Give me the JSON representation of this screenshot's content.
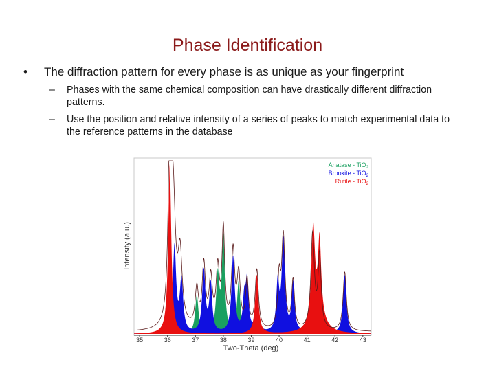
{
  "title": "Phase Identification",
  "bullet_main": {
    "marker": "•",
    "text": "The diffraction pattern for every phase is as unique as your fingerprint"
  },
  "sub_bullets": [
    {
      "marker": "–",
      "text": "Phases with the same chemical composition can have drastically different diffraction patterns."
    },
    {
      "marker": "–",
      "text": "Use the position and relative intensity of a series of peaks to match experimental data to the reference patterns in the database"
    }
  ],
  "chart_data": {
    "type": "area",
    "xlabel": "Two-Theta (deg)",
    "ylabel": "Intensity (a.u.)",
    "xlim": [
      34.8,
      43.3
    ],
    "ylim": [
      0,
      100
    ],
    "x_ticks": [
      "35",
      "36",
      "37",
      "38",
      "39",
      "40",
      "41",
      "42",
      "43"
    ],
    "grid": false,
    "legend_position": "top-right",
    "series": [
      {
        "name": "Anatase - TiO",
        "subscript": "2",
        "color": "#1aa060",
        "peaks": [
          [
            37.05,
            22,
            0.07
          ],
          [
            37.8,
            33,
            0.07
          ],
          [
            38.0,
            55,
            0.06
          ],
          [
            38.55,
            30,
            0.07
          ]
        ]
      },
      {
        "name": "Brookite - TiO",
        "subscript": "2",
        "color": "#1010e0",
        "peaks": [
          [
            36.25,
            50,
            0.07
          ],
          [
            36.5,
            30,
            0.07
          ],
          [
            37.3,
            36,
            0.07
          ],
          [
            37.55,
            28,
            0.06
          ],
          [
            38.35,
            44,
            0.07
          ],
          [
            38.75,
            18,
            0.06
          ],
          [
            38.85,
            28,
            0.06
          ],
          [
            39.2,
            22,
            0.06
          ],
          [
            39.95,
            28,
            0.06
          ],
          [
            40.15,
            53,
            0.07
          ],
          [
            40.5,
            28,
            0.06
          ],
          [
            41.2,
            44,
            0.07
          ],
          [
            42.35,
            34,
            0.07
          ]
        ]
      },
      {
        "name": "Rutile - TiO",
        "subscript": "2",
        "color": "#e81010",
        "peaks": [
          [
            36.08,
            98,
            0.065
          ],
          [
            39.2,
            34,
            0.07
          ],
          [
            41.22,
            54,
            0.075
          ],
          [
            41.45,
            42,
            0.065
          ],
          [
            41.4,
            12,
            0.25
          ]
        ]
      }
    ],
    "measured_peaks": [
      [
        36.08,
        100,
        0.065
      ],
      [
        36.2,
        70,
        0.1
      ],
      [
        36.45,
        40,
        0.09
      ],
      [
        37.05,
        22,
        0.07
      ],
      [
        37.3,
        36,
        0.07
      ],
      [
        37.55,
        28,
        0.07
      ],
      [
        37.8,
        33,
        0.07
      ],
      [
        38.0,
        56,
        0.06
      ],
      [
        38.35,
        44,
        0.07
      ],
      [
        38.55,
        30,
        0.07
      ],
      [
        38.85,
        28,
        0.06
      ],
      [
        39.2,
        34,
        0.07
      ],
      [
        40.0,
        28,
        0.06
      ],
      [
        40.15,
        53,
        0.07
      ],
      [
        40.5,
        28,
        0.06
      ],
      [
        41.2,
        55,
        0.075
      ],
      [
        41.45,
        42,
        0.065
      ],
      [
        42.35,
        34,
        0.07
      ]
    ]
  }
}
